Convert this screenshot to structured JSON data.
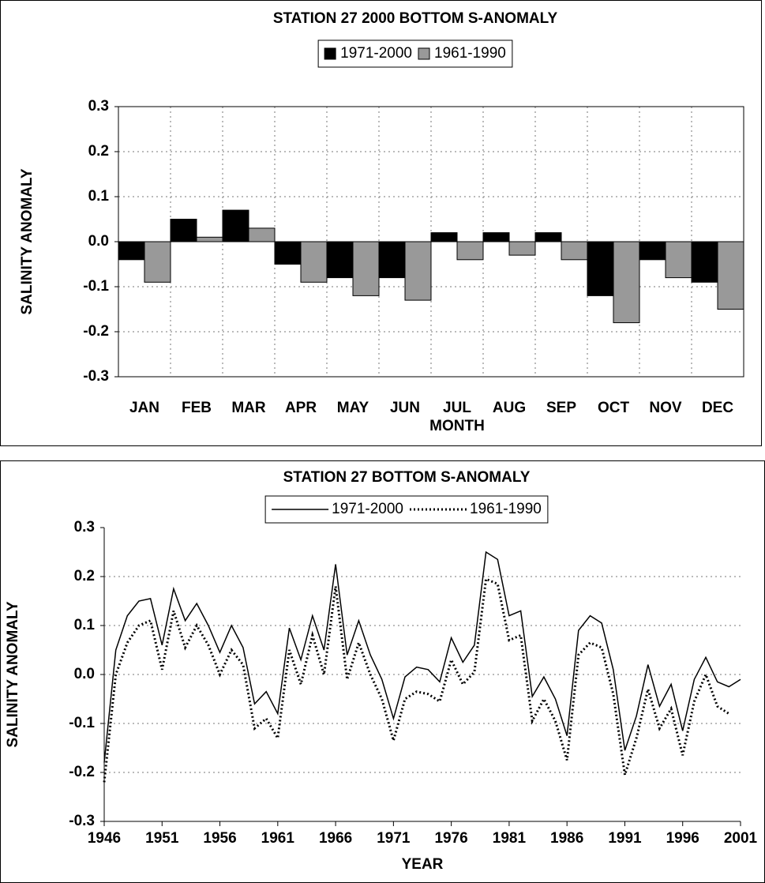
{
  "chart_data": [
    {
      "type": "bar",
      "title": "STATION 27 2000 BOTTOM S-ANOMALY",
      "x_label": "MONTH",
      "y_label": "SALINITY ANOMALY",
      "categories": [
        "JAN",
        "FEB",
        "MAR",
        "APR",
        "MAY",
        "JUN",
        "JUL",
        "AUG",
        "SEP",
        "OCT",
        "NOV",
        "DEC"
      ],
      "series": [
        {
          "name": "1971-2000",
          "color": "#000000",
          "values": [
            -0.04,
            0.05,
            0.07,
            -0.05,
            -0.08,
            -0.08,
            0.02,
            0.02,
            0.02,
            -0.12,
            -0.04,
            -0.09
          ]
        },
        {
          "name": "1961-1990",
          "color": "#999999",
          "values": [
            -0.09,
            0.01,
            0.03,
            -0.09,
            -0.12,
            -0.13,
            -0.04,
            -0.03,
            -0.04,
            -0.18,
            -0.08,
            -0.15
          ]
        }
      ],
      "ylim": [
        -0.3,
        0.3
      ],
      "yticks": [
        -0.3,
        -0.2,
        -0.1,
        {
          "value": 0,
          "label": "0.0"
        },
        0.1,
        0.2,
        0.3
      ],
      "grid": true,
      "legend": "top"
    },
    {
      "type": "line",
      "title": "STATION 27 BOTTOM S-ANOMALY",
      "x_label": "YEAR",
      "y_label": "SALINITY ANOMALY",
      "x": [
        1946,
        1947,
        1948,
        1949,
        1950,
        1951,
        1952,
        1953,
        1954,
        1955,
        1956,
        1957,
        1958,
        1959,
        1960,
        1961,
        1962,
        1963,
        1964,
        1965,
        1966,
        1967,
        1968,
        1969,
        1970,
        1971,
        1972,
        1973,
        1974,
        1975,
        1976,
        1977,
        1978,
        1979,
        1980,
        1981,
        1982,
        1983,
        1984,
        1985,
        1986,
        1987,
        1988,
        1989,
        1990,
        1991,
        1992,
        1993,
        1994,
        1995,
        1996,
        1997,
        1998,
        1999,
        2000,
        2001
      ],
      "series": [
        {
          "name": "1971-2000",
          "color": "#000000",
          "style": "solid",
          "values": [
            -0.18,
            0.05,
            0.12,
            0.15,
            0.155,
            0.06,
            0.175,
            0.11,
            0.145,
            0.1,
            0.045,
            0.1,
            0.055,
            -0.06,
            -0.035,
            -0.08,
            0.095,
            0.03,
            0.12,
            0.05,
            0.225,
            0.04,
            0.11,
            0.04,
            -0.01,
            -0.09,
            -0.005,
            0.015,
            0.01,
            -0.015,
            0.075,
            0.025,
            0.06,
            0.25,
            0.235,
            0.12,
            0.13,
            -0.045,
            -0.005,
            -0.05,
            -0.125,
            0.09,
            0.12,
            0.105,
            0.01,
            -0.155,
            -0.085,
            0.02,
            -0.065,
            -0.02,
            -0.115,
            -0.01,
            0.035,
            -0.015,
            -0.025,
            -0.01
          ]
        },
        {
          "name": "1961-1990",
          "color": "#000000",
          "style": "dotted",
          "values": [
            -0.22,
            0.0,
            0.065,
            0.1,
            0.11,
            0.01,
            0.13,
            0.055,
            0.1,
            0.06,
            0.0,
            0.05,
            0.02,
            -0.11,
            -0.09,
            -0.13,
            0.05,
            -0.02,
            0.08,
            0.0,
            0.18,
            -0.01,
            0.065,
            0.0,
            -0.05,
            -0.135,
            -0.05,
            -0.035,
            -0.04,
            -0.055,
            0.03,
            -0.02,
            0.005,
            0.195,
            0.185,
            0.07,
            0.08,
            -0.095,
            -0.05,
            -0.095,
            -0.175,
            0.04,
            0.065,
            0.055,
            -0.04,
            -0.205,
            -0.13,
            -0.03,
            -0.11,
            -0.07,
            -0.165,
            -0.055,
            0.0,
            -0.065,
            -0.08,
            null
          ]
        }
      ],
      "xlim": [
        1946,
        2001
      ],
      "xticks": [
        1946,
        1951,
        1956,
        1961,
        1966,
        1971,
        1976,
        1981,
        1986,
        1991,
        1996,
        2001
      ],
      "ylim": [
        -0.3,
        0.3
      ],
      "yticks": [
        -0.3,
        -0.2,
        -0.1,
        {
          "value": 0,
          "label": "0.0"
        },
        0.1,
        0.2,
        0.3
      ],
      "grid": true,
      "legend": "top"
    }
  ]
}
